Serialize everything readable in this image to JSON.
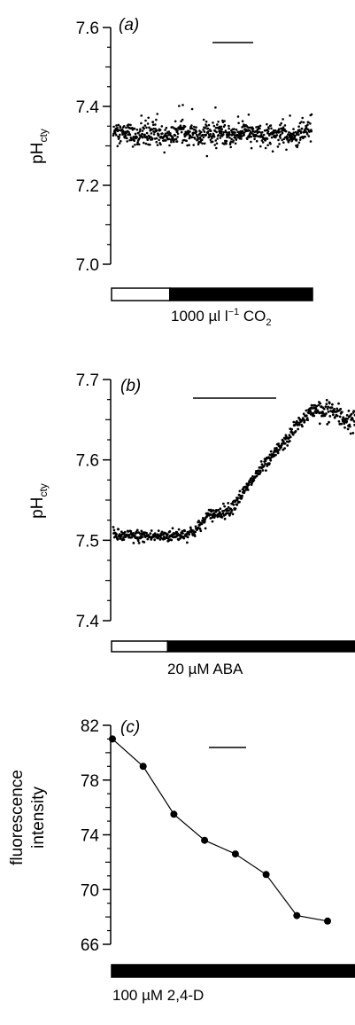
{
  "chart_data": [
    {
      "type": "scatter",
      "panel_label": "(a)",
      "ylabel": "pH",
      "ylabel_sub": "cty",
      "ylim": [
        7.0,
        7.6
      ],
      "yticks": [
        7.6,
        7.4,
        7.2,
        7.0
      ],
      "ytick_labels": [
        "7.6",
        "7.4",
        "7.2",
        "7.0"
      ],
      "treatment": {
        "text": "1000 µl l",
        "sup": "−1",
        "text2": " CO",
        "sub": "2"
      },
      "treatment_bar": {
        "white_fraction": 0.29
      },
      "scale_bar": true,
      "series": [
        {
          "x_range": [
            0,
            1
          ],
          "mean": 7.33,
          "scatter": 0.03,
          "n": 700
        }
      ]
    },
    {
      "type": "scatter",
      "panel_label": "(b)",
      "ylabel": "pH",
      "ylabel_sub": "cty",
      "ylim": [
        7.4,
        7.7
      ],
      "yticks": [
        7.7,
        7.6,
        7.5,
        7.4
      ],
      "ytick_labels": [
        "7.7",
        "7.6",
        "7.5",
        "7.4"
      ],
      "treatment": {
        "text": "20 µM ABA"
      },
      "treatment_bar": {
        "white_fraction": 0.23
      },
      "scale_bar": true,
      "series": [
        {
          "x": [
            0.0,
            0.03,
            0.1,
            0.2,
            0.3,
            0.34,
            0.37,
            0.39,
            0.42,
            0.48,
            0.5,
            0.54,
            0.6,
            0.65,
            0.68,
            0.72,
            0.75,
            0.8,
            0.84,
            0.87,
            0.9,
            0.93,
            0.96,
            1.0
          ],
          "y": [
            7.507,
            7.505,
            7.505,
            7.505,
            7.508,
            7.512,
            7.522,
            7.53,
            7.533,
            7.538,
            7.545,
            7.56,
            7.585,
            7.6,
            7.613,
            7.625,
            7.64,
            7.655,
            7.665,
            7.657,
            7.663,
            7.655,
            7.65,
            7.648
          ],
          "scatter": 0.004
        }
      ]
    },
    {
      "type": "line",
      "panel_label": "(c)",
      "ylabel_lines": [
        "fluorescence",
        "intensity"
      ],
      "ylim": [
        66,
        82
      ],
      "yticks": [
        82,
        78,
        74,
        70,
        66
      ],
      "ytick_labels": [
        "82",
        "78",
        "74",
        "70",
        "66"
      ],
      "treatment": {
        "text": "100 µM 2,4-D"
      },
      "treatment_bar": {
        "white_fraction": 0.0
      },
      "scale_bar": true,
      "series": [
        {
          "x": [
            0,
            1,
            2,
            3,
            4,
            5,
            6,
            7
          ],
          "values": [
            81.0,
            79.0,
            75.5,
            73.6,
            72.6,
            71.1,
            68.1,
            67.7
          ]
        }
      ]
    }
  ]
}
